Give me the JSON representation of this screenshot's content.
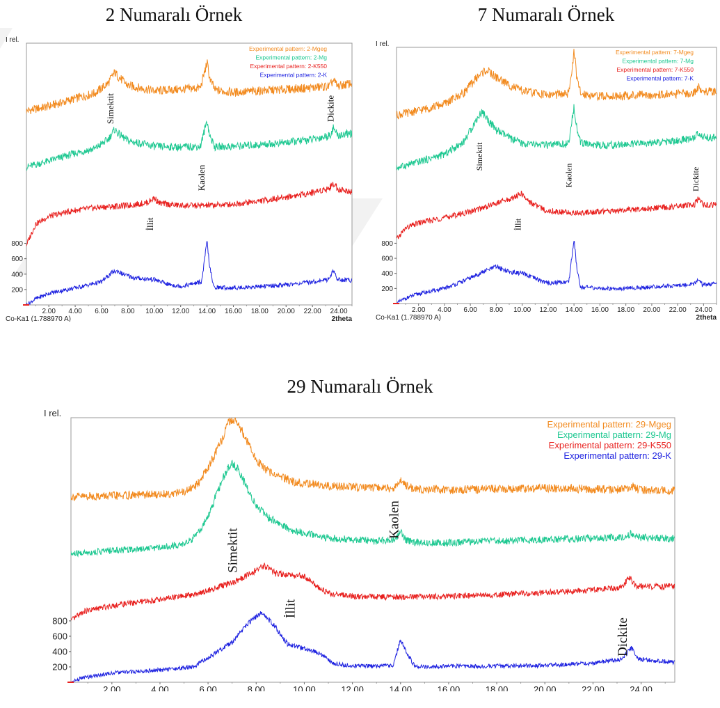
{
  "panels": [
    {
      "title": "2 Numaralı Örnek",
      "chart_data": {
        "type": "line",
        "ylabel": "I rel.",
        "xlabel": "2theta",
        "source_label": "Co-Ka1 (1.788970 A)",
        "xlim": [
          0.3,
          25.0
        ],
        "ylim": [
          0,
          3400
        ],
        "x_ticks": [
          "2.00",
          "4.00",
          "6.00",
          "8.00",
          "10.00",
          "12.00",
          "14.00",
          "16.00",
          "18.00",
          "20.00",
          "22.00",
          "24.00"
        ],
        "y_ticks": [
          "200",
          "400",
          "600",
          "800"
        ],
        "legend_position": "top-right",
        "series": [
          {
            "name": "Experimental pattern: 2-Mgeg",
            "color": "#f28a1e",
            "x": [
              0.3,
              2,
              4,
              5.5,
              6.5,
              7.0,
              7.3,
              8.0,
              10,
              12,
              13.5,
              13.9,
              14.0,
              14.2,
              14.6,
              16,
              18,
              20,
              22,
              23.3,
              23.6,
              23.9,
              25
            ],
            "y": [
              2520,
              2580,
              2680,
              2750,
              2880,
              3020,
              2960,
              2850,
              2780,
              2800,
              2820,
              3080,
              3150,
              2950,
              2790,
              2760,
              2780,
              2800,
              2820,
              2840,
              2920,
              2840,
              2880
            ]
          },
          {
            "name": "Experimental pattern: 2-Mg",
            "color": "#1ec891",
            "x": [
              0.3,
              2,
              4,
              5.5,
              6.5,
              7.0,
              7.3,
              8.0,
              10,
              12,
              13.5,
              13.9,
              14.0,
              14.2,
              14.6,
              16,
              18,
              20,
              22,
              23.3,
              23.6,
              23.9,
              25
            ],
            "y": [
              1790,
              1870,
              1970,
              2030,
              2150,
              2280,
              2220,
              2130,
              2060,
              2050,
              2060,
              2330,
              2400,
              2200,
              2050,
              2060,
              2080,
              2110,
              2150,
              2200,
              2300,
              2200,
              2230
            ]
          },
          {
            "name": "Experimental pattern: 2-K550",
            "color": "#e8201e",
            "x": [
              0.3,
              1.0,
              2,
              4,
              6,
              8,
              9.5,
              10.0,
              10.4,
              12,
              14,
              16,
              18,
              20,
              22,
              23.3,
              23.6,
              24.0,
              25
            ],
            "y": [
              780,
              1050,
              1150,
              1230,
              1270,
              1290,
              1330,
              1390,
              1320,
              1290,
              1290,
              1310,
              1350,
              1400,
              1460,
              1520,
              1580,
              1500,
              1470
            ]
          },
          {
            "name": "Experimental pattern: 2-K",
            "color": "#1e22e0",
            "x": [
              0.3,
              1.0,
              2,
              4,
              6,
              6.8,
              7.2,
              7.6,
              8.5,
              10,
              11,
              12,
              13.6,
              13.9,
              14.0,
              14.2,
              14.5,
              16,
              18,
              20,
              22,
              23.2,
              23.6,
              23.9,
              25
            ],
            "y": [
              0,
              80,
              150,
              220,
              300,
              420,
              440,
              400,
              350,
              330,
              270,
              240,
              300,
              700,
              830,
              500,
              230,
              220,
              240,
              260,
              300,
              330,
              450,
              330,
              320
            ]
          }
        ],
        "annotations": [
          {
            "text": "Simektit",
            "x": 6.9,
            "y": 2550
          },
          {
            "text": "Kaolen",
            "x": 13.8,
            "y": 1650
          },
          {
            "text": "İllit",
            "x": 9.9,
            "y": 1050
          },
          {
            "text": "Dickite",
            "x": 23.6,
            "y": 2550
          }
        ]
      }
    },
    {
      "title": "7 Numaralı Örnek",
      "chart_data": {
        "type": "line",
        "ylabel": "I rel.",
        "xlabel": "2theta",
        "source_label": "Co-Ka1 (1.788970 A)",
        "xlim": [
          0.3,
          25.0
        ],
        "ylim": [
          0,
          3400
        ],
        "x_ticks": [
          "2.00",
          "4.00",
          "6.00",
          "8.00",
          "10.00",
          "12.00",
          "14.00",
          "16.00",
          "18.00",
          "20.00",
          "22.00",
          "24.00"
        ],
        "y_ticks": [
          "200",
          "400",
          "600",
          "800"
        ],
        "legend_position": "top-right",
        "series": [
          {
            "name": "Experimental pattern: 7-Mgeg",
            "color": "#f28a1e",
            "x": [
              0.3,
              2,
              4,
              5.5,
              6.5,
              7.2,
              8.0,
              9.0,
              10,
              12,
              13.6,
              13.9,
              14.0,
              14.2,
              14.5,
              16,
              18,
              20,
              22,
              23.3,
              23.6,
              23.9,
              25
            ],
            "y": [
              2500,
              2560,
              2650,
              2800,
              3000,
              3100,
              3000,
              2900,
              2820,
              2770,
              2780,
              3200,
              3380,
              3000,
              2790,
              2750,
              2760,
              2770,
              2780,
              2800,
              2880,
              2810,
              2820
            ]
          },
          {
            "name": "Experimental pattern: 7-Mg",
            "color": "#1ec891",
            "x": [
              0.3,
              2,
              4,
              5.5,
              6.5,
              6.9,
              7.3,
              8.0,
              9.0,
              10,
              12,
              13.6,
              13.9,
              14.0,
              14.2,
              14.5,
              16,
              18,
              20,
              22,
              23.3,
              23.6,
              23.9,
              25
            ],
            "y": [
              1800,
              1880,
              1980,
              2150,
              2450,
              2550,
              2450,
              2300,
              2200,
              2120,
              2100,
              2120,
              2500,
              2630,
              2350,
              2130,
              2100,
              2110,
              2130,
              2160,
              2200,
              2280,
              2200,
              2210
            ]
          },
          {
            "name": "Experimental pattern: 7-K550",
            "color": "#e8201e",
            "x": [
              0.3,
              1.0,
              2,
              4,
              6,
              8,
              9.3,
              9.9,
              10.5,
              11.5,
              12,
              14,
              16,
              18,
              20,
              22,
              23.3,
              23.6,
              24.0,
              25
            ],
            "y": [
              850,
              1000,
              1070,
              1140,
              1220,
              1330,
              1400,
              1460,
              1360,
              1260,
              1230,
              1200,
              1220,
              1240,
              1260,
              1290,
              1310,
              1390,
              1300,
              1310
            ]
          },
          {
            "name": "Experimental pattern: 7-K",
            "color": "#1e22e0",
            "x": [
              0.3,
              1.0,
              2,
              4,
              5.5,
              7.0,
              8.0,
              9.0,
              10.0,
              11.0,
              12,
              13.6,
              13.9,
              14.0,
              14.2,
              14.5,
              16,
              18,
              20,
              22,
              23.3,
              23.6,
              23.9,
              25
            ],
            "y": [
              0,
              70,
              130,
              200,
              300,
              420,
              490,
              420,
              400,
              330,
              270,
              290,
              720,
              850,
              500,
              220,
              200,
              200,
              220,
              240,
              260,
              330,
              250,
              260
            ]
          }
        ],
        "annotations": [
          {
            "text": "Simektit",
            "x": 6.9,
            "y": 1950
          },
          {
            "text": "Kaolen",
            "x": 13.8,
            "y": 1700
          },
          {
            "text": "İllit",
            "x": 9.9,
            "y": 1050
          },
          {
            "text": "Dickite",
            "x": 23.6,
            "y": 1650
          }
        ]
      }
    },
    {
      "title": "29 Numaralı Örnek",
      "chart_data": {
        "type": "line",
        "ylabel": "I rel.",
        "xlabel": "2theta",
        "source_label": "Co-Ka1 (1.788970 A)",
        "xlim": [
          0.3,
          25.4
        ],
        "ylim": [
          0,
          3450
        ],
        "x_ticks": [
          "2.00",
          "4.00",
          "6.00",
          "8.00",
          "10.00",
          "12.00",
          "14.00",
          "16.00",
          "18.00",
          "20.00",
          "22.00",
          "24.00"
        ],
        "y_ticks": [
          "200",
          "400",
          "600",
          "800"
        ],
        "legend_position": "top-right",
        "series": [
          {
            "name": "Experimental pattern: 29-Mgeg",
            "color": "#f28a1e",
            "x": [
              0.3,
              2,
              4,
              5.0,
              5.5,
              6.0,
              6.5,
              6.8,
              7.0,
              7.2,
              7.6,
              8.0,
              8.5,
              9.5,
              11,
              13,
              13.8,
              14.0,
              14.2,
              14.6,
              16,
              18,
              20,
              22,
              23.3,
              23.6,
              23.9,
              25.4
            ],
            "y": [
              2420,
              2430,
              2450,
              2480,
              2560,
              2800,
              3100,
              3350,
              3440,
              3400,
              3150,
              2900,
              2750,
              2620,
              2560,
              2530,
              2540,
              2660,
              2560,
              2520,
              2510,
              2520,
              2530,
              2520,
              2510,
              2560,
              2510,
              2500
            ]
          },
          {
            "name": "Experimental pattern: 29-Mg",
            "color": "#1ec891",
            "x": [
              0.3,
              2,
              4,
              5.0,
              5.5,
              6.0,
              6.4,
              6.8,
              7.0,
              7.2,
              7.6,
              8.0,
              8.5,
              9.5,
              11,
              13,
              13.8,
              14.0,
              14.2,
              14.6,
              16,
              18,
              20,
              22,
              23.3,
              23.6,
              23.9,
              25.4
            ],
            "y": [
              1670,
              1720,
              1760,
              1800,
              1900,
              2150,
              2500,
              2780,
              2850,
              2800,
              2550,
              2300,
              2150,
              1980,
              1880,
              1840,
              1860,
              1980,
              1860,
              1820,
              1820,
              1840,
              1860,
              1880,
              1890,
              1940,
              1890,
              1870
            ]
          },
          {
            "name": "Experimental pattern: 29-K550",
            "color": "#e8201e",
            "x": [
              0.3,
              0.8,
              2,
              4,
              5.5,
              7.0,
              7.8,
              8.3,
              8.8,
              9.4,
              10.0,
              10.5,
              11.0,
              12,
              14,
              16,
              18,
              20,
              22,
              23.2,
              23.5,
              23.8,
              25.4
            ],
            "y": [
              800,
              920,
              1000,
              1080,
              1150,
              1300,
              1420,
              1520,
              1420,
              1400,
              1380,
              1260,
              1160,
              1120,
              1110,
              1120,
              1140,
              1170,
              1200,
              1240,
              1370,
              1250,
              1250
            ]
          },
          {
            "name": "Experimental pattern: 29-K",
            "color": "#1e22e0",
            "x": [
              0.3,
              0.8,
              2,
              4,
              5.4,
              6.0,
              7.0,
              7.7,
              8.2,
              8.7,
              9.3,
              10.0,
              10.6,
              11.2,
              12,
              13.7,
              14.0,
              14.2,
              14.6,
              16,
              18,
              20,
              22,
              23.2,
              23.6,
              23.9,
              25.4
            ],
            "y": [
              0,
              60,
              120,
              160,
              200,
              320,
              520,
              780,
              900,
              760,
              500,
              440,
              380,
              250,
              210,
              220,
              560,
              420,
              200,
              210,
              210,
              220,
              250,
              300,
              450,
              300,
              260
            ]
          }
        ],
        "annotations": [
          {
            "text": "Simektit",
            "x": 7.2,
            "y": 1720
          },
          {
            "text": "Kaolen",
            "x": 13.9,
            "y": 2120
          },
          {
            "text": "İllit",
            "x": 9.6,
            "y": 960
          },
          {
            "text": "Dickite",
            "x": 23.4,
            "y": 590
          }
        ]
      }
    }
  ]
}
